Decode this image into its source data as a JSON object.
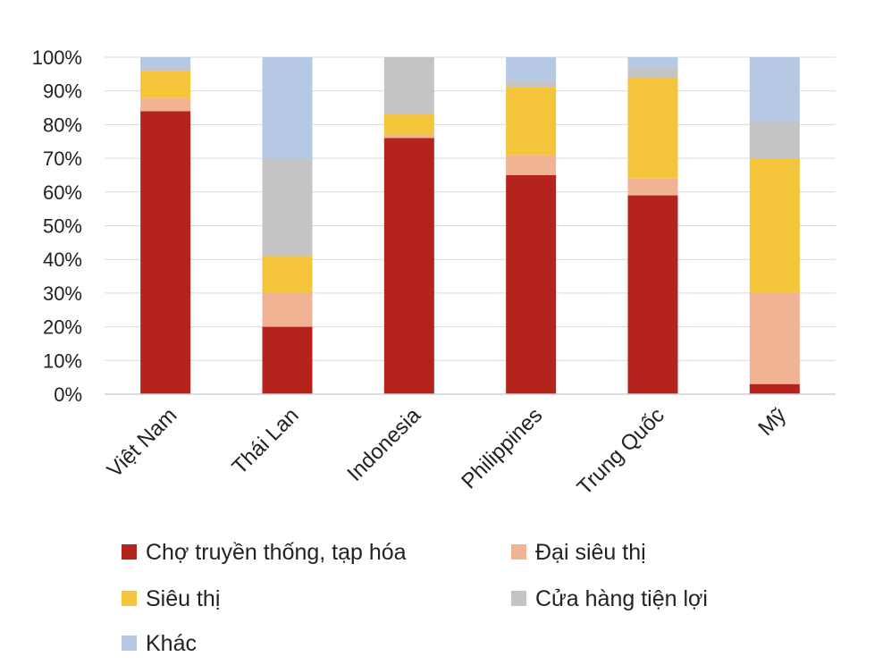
{
  "chart_data": {
    "type": "bar",
    "stacked": true,
    "orientation": "vertical",
    "normalized": true,
    "categories": [
      "Việt Nam",
      "Thái Lan",
      "Indonesia",
      "Philippines",
      "Trung Quốc",
      "Mỹ"
    ],
    "series": [
      {
        "name": "Chợ truyền thống, tạp hóa",
        "color": "#b5241c",
        "values": [
          84,
          20,
          76,
          65,
          59,
          3
        ]
      },
      {
        "name": "Đại siêu thị",
        "color": "#f0b494",
        "values": [
          4,
          10,
          1,
          6,
          5,
          27
        ]
      },
      {
        "name": "Siêu thị",
        "color": "#f4c53a",
        "values": [
          8,
          11,
          6,
          20,
          30,
          40
        ]
      },
      {
        "name": "Cửa hàng tiện lợi",
        "color": "#c4c4c4",
        "values": [
          1,
          29,
          17,
          2,
          3,
          11
        ]
      },
      {
        "name": "Khác",
        "color": "#b5c8e4",
        "values": [
          3,
          30,
          0,
          7,
          3,
          19
        ]
      }
    ],
    "yticks": [
      "0%",
      "10%",
      "20%",
      "30%",
      "40%",
      "50%",
      "60%",
      "70%",
      "80%",
      "90%",
      "100%"
    ],
    "ylim": [
      0,
      100
    ],
    "grid": true,
    "legend_position": "bottom",
    "title": "",
    "xlabel": "",
    "ylabel": ""
  }
}
